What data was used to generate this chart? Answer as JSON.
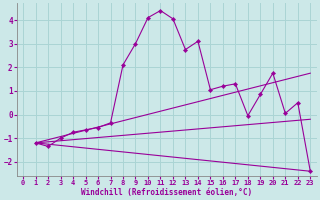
{
  "xlabel": "Windchill (Refroidissement éolien,°C)",
  "background_color": "#cce8e8",
  "line_color": "#990099",
  "grid_color": "#aad4d4",
  "xlim": [
    -0.5,
    23.5
  ],
  "ylim": [
    -2.6,
    4.7
  ],
  "yticks": [
    -2,
    -1,
    0,
    1,
    2,
    3,
    4
  ],
  "xticks": [
    0,
    1,
    2,
    3,
    4,
    5,
    6,
    7,
    8,
    9,
    10,
    11,
    12,
    13,
    14,
    15,
    16,
    17,
    18,
    19,
    20,
    21,
    22,
    23
  ],
  "line1_x": [
    1,
    2,
    3,
    4,
    5,
    6,
    7,
    8,
    9,
    10,
    11,
    12,
    13,
    14,
    15,
    16,
    17,
    18,
    19,
    20,
    21,
    22,
    23
  ],
  "line1_y": [
    -1.2,
    -1.35,
    -1.0,
    -0.75,
    -0.65,
    -0.55,
    -0.35,
    2.1,
    3.0,
    4.1,
    4.4,
    4.05,
    2.75,
    3.1,
    1.05,
    1.2,
    1.3,
    -0.05,
    0.85,
    1.75,
    0.05,
    0.5,
    -2.4
  ],
  "line2_x": [
    1,
    23
  ],
  "line2_y": [
    -1.2,
    1.75
  ],
  "line3_x": [
    1,
    23
  ],
  "line3_y": [
    -1.2,
    -0.2
  ],
  "line4_x": [
    1,
    23
  ],
  "line4_y": [
    -1.2,
    -2.4
  ]
}
